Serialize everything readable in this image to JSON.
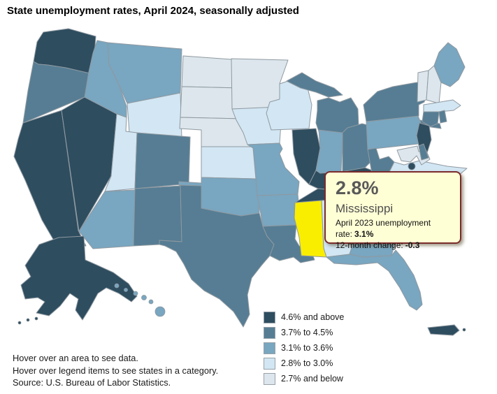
{
  "title": "State unemployment rates, April 2024, seasonally adjusted",
  "tooltip": {
    "rate": "2.8%",
    "state": "Mississippi",
    "prev_label": "April 2023 unemployment rate:",
    "prev_value": "3.1%",
    "change_label": "12-month change:",
    "change_value": "-0.3"
  },
  "legend": [
    {
      "label": "4.6% and above",
      "color": "#2e4d5f"
    },
    {
      "label": "3.7% to 4.5%",
      "color": "#567d93"
    },
    {
      "label": "3.1% to 3.6%",
      "color": "#79a6c0"
    },
    {
      "label": "2.8% to 3.0%",
      "color": "#d2e6f3"
    },
    {
      "label": "2.7% and below",
      "color": "#dce6ec"
    }
  ],
  "footer": {
    "line1": "Hover over an area to see data.",
    "line2": "Hover over legend items to see states in a category.",
    "line3": "Source: U.S. Bureau of Labor Statistics."
  },
  "colors": {
    "highlight": "#f9ee00",
    "state_border": "#8f99a1",
    "tooltip_bg": "#ffffd6",
    "tooltip_border": "#7a2b2b"
  },
  "chart_data": {
    "type": "choropleth_map",
    "title": "State unemployment rates, April 2024, seasonally adjusted",
    "highlighted_state": "MS",
    "highlighted_value": "2.8%",
    "legend_position": "bottom-center",
    "states": {
      "WA": "4.6% and above",
      "CA": "4.6% and above",
      "NV": "4.6% and above",
      "AK": "4.6% and above",
      "IL": "4.6% and above",
      "KY": "4.6% and above",
      "TN": "4.6% and above",
      "NJ": "4.6% and above",
      "DC": "4.6% and above",
      "PR": "4.6% and above",
      "OR": "3.7% to 4.5%",
      "CO": "3.7% to 4.5%",
      "NM": "3.7% to 4.5%",
      "TX": "3.7% to 4.5%",
      "LA": "3.7% to 4.5%",
      "MI": "3.7% to 4.5%",
      "OH": "3.7% to 4.5%",
      "NY": "3.7% to 4.5%",
      "CT": "3.7% to 4.5%",
      "RI": "3.7% to 4.5%",
      "WV": "3.7% to 4.5%",
      "DE": "3.7% to 4.5%",
      "ID": "3.1% to 3.6%",
      "MT": "3.1% to 3.6%",
      "AZ": "3.1% to 3.6%",
      "OK": "3.1% to 3.6%",
      "AR": "3.1% to 3.6%",
      "MO": "3.1% to 3.6%",
      "IN": "3.1% to 3.6%",
      "PA": "3.1% to 3.6%",
      "ME": "3.1% to 3.6%",
      "FL": "3.1% to 3.6%",
      "GA": "3.1% to 3.6%",
      "HI": "3.1% to 3.6%",
      "WY": "2.8% to 3.0%",
      "UT": "2.8% to 3.0%",
      "KS": "2.8% to 3.0%",
      "IA": "2.8% to 3.0%",
      "WI": "2.8% to 3.0%",
      "MA": "2.8% to 3.0%",
      "VA": "2.8% to 3.0%",
      "AL": "2.8% to 3.0%",
      "MS": "2.8% to 3.0%",
      "ND": "2.7% and below",
      "SD": "2.7% and below",
      "NE": "2.7% and below",
      "MN": "2.7% and below",
      "VT": "2.7% and below",
      "NH": "2.7% and below",
      "MD": "2.7% and below"
    }
  }
}
